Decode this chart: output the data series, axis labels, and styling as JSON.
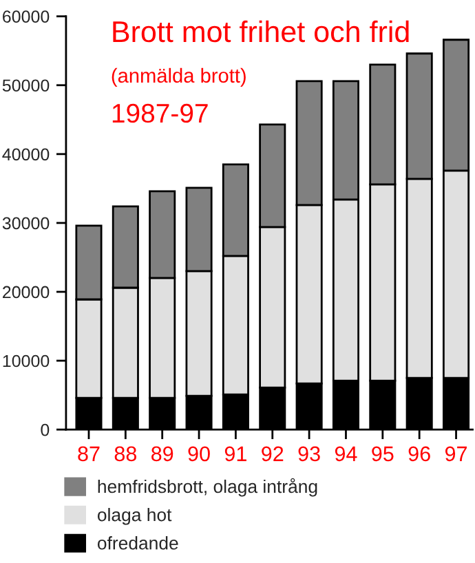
{
  "chart_data": {
    "type": "bar",
    "title": "Brott mot frihet och frid",
    "subtitle": "(anmälda brott)",
    "annotations": [
      "1987-97"
    ],
    "categories": [
      "87",
      "88",
      "89",
      "90",
      "91",
      "92",
      "93",
      "94",
      "95",
      "96",
      "97"
    ],
    "stacked": true,
    "series": [
      {
        "name": "ofredande",
        "color": "#000000",
        "values": [
          4600,
          4600,
          4600,
          4900,
          5100,
          6100,
          6700,
          7100,
          7100,
          7500,
          7500
        ]
      },
      {
        "name": "olaga hot",
        "color": "#e0e0e0",
        "values": [
          14300,
          16000,
          17400,
          18100,
          20100,
          23300,
          25900,
          26300,
          28500,
          28900,
          30100
        ]
      },
      {
        "name": "hemfridsbrott, olaga intrång",
        "color": "#808080",
        "values": [
          10700,
          11800,
          12600,
          12100,
          13300,
          14900,
          18000,
          17200,
          17400,
          18200,
          19000
        ]
      }
    ],
    "ylim": [
      0,
      60000
    ],
    "yticks": [
      0,
      10000,
      20000,
      30000,
      40000,
      50000,
      60000
    ],
    "grid": false,
    "legend": "bottom"
  }
}
